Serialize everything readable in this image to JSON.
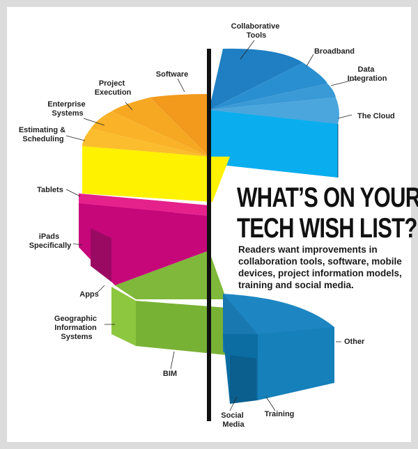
{
  "title": {
    "line1": "WHAT’S ON YOUR",
    "line2": "TECH WISH LIST?"
  },
  "subtitle": "Readers want improvements in collaboration tools, software, mobile devices, project information models, training and social media.",
  "labels": {
    "collaborative_tools": [
      "Collaborative",
      "Tools"
    ],
    "broadband": [
      "Broadband"
    ],
    "data_integration": [
      "Data",
      "Integration"
    ],
    "the_cloud": [
      "The Cloud"
    ],
    "software": [
      "Software"
    ],
    "project_execution": [
      "Project",
      "Execution"
    ],
    "enterprise_systems": [
      "Enterprise",
      "Systems"
    ],
    "estimating_scheduling": [
      "Estimating &",
      "Scheduling"
    ],
    "tablets": [
      "Tablets"
    ],
    "ipads": [
      "iPads",
      "Specifically"
    ],
    "apps": [
      "Apps"
    ],
    "gis": [
      "Geographic",
      "Information",
      "Systems"
    ],
    "bim": [
      "BIM"
    ],
    "other": [
      "Other"
    ],
    "training": [
      "Training"
    ],
    "social_media": [
      "Social",
      "Media"
    ]
  },
  "colors": {
    "collaboration": "#0a8ed6",
    "software": "#f5a91e",
    "yellow": "#fff200",
    "mobile": "#d4147e",
    "green": "#8cc63f",
    "teal": "#0f7bb5",
    "pole": "#111111"
  }
}
